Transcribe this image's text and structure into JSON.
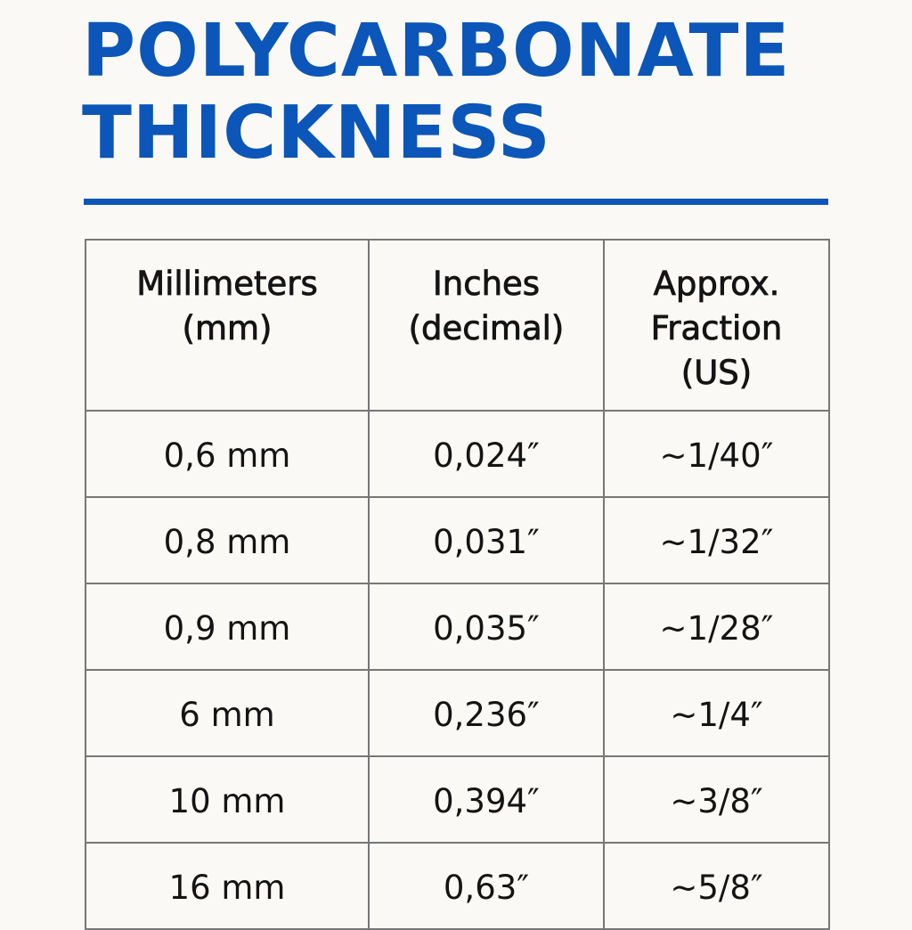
{
  "title": {
    "line1": "POLYCARBONATE",
    "line2": "THICKNESS"
  },
  "colors": {
    "accent": "#0b56b8",
    "background": "#faf9f5",
    "text": "#141414",
    "grid": "#777777"
  },
  "table": {
    "headers": [
      {
        "line1": "Millimeters",
        "line2": "(mm)",
        "line3": ""
      },
      {
        "line1": "Inches",
        "line2": "(decimal)",
        "line3": ""
      },
      {
        "line1": "Approx.",
        "line2": "Fraction",
        "line3": "(US)"
      }
    ],
    "rows": [
      {
        "mm": "0,6 mm",
        "inches": "0,024″",
        "fraction": "~1/40″"
      },
      {
        "mm": "0,8 mm",
        "inches": "0,031″",
        "fraction": "~1/32″"
      },
      {
        "mm": "0,9 mm",
        "inches": "0,035″",
        "fraction": "~1/28″"
      },
      {
        "mm": "6 mm",
        "inches": "0,236″",
        "fraction": "~1/4″"
      },
      {
        "mm": "10 mm",
        "inches": "0,394″",
        "fraction": "~3/8″"
      },
      {
        "mm": "16 mm",
        "inches": "0,63″",
        "fraction": "~5/8″"
      }
    ]
  }
}
